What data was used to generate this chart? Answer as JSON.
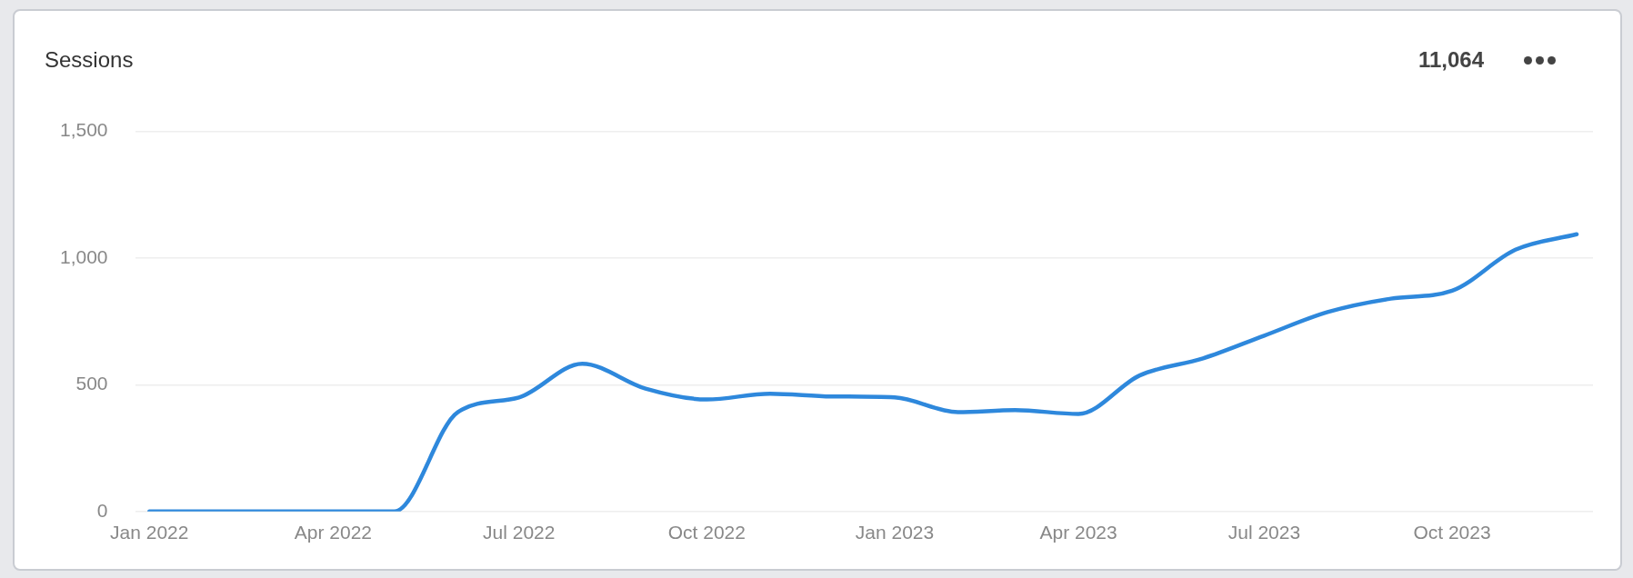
{
  "chart_data": {
    "type": "line",
    "title": "Sessions",
    "annotations": [
      "11,064"
    ],
    "x": [
      "2022-01",
      "2022-02",
      "2022-03",
      "2022-04",
      "2022-05",
      "2022-06",
      "2022-07",
      "2022-08",
      "2022-09",
      "2022-10",
      "2022-11",
      "2022-12",
      "2023-01",
      "2023-02",
      "2023-03",
      "2023-04",
      "2023-05",
      "2023-06",
      "2023-07",
      "2023-08",
      "2023-09",
      "2023-10",
      "2023-11",
      "2023-12"
    ],
    "values": [
      0,
      0,
      0,
      0,
      0,
      392,
      450,
      583,
      485,
      442,
      465,
      454,
      450,
      392,
      400,
      385,
      537,
      604,
      694,
      787,
      840,
      871,
      1033,
      1094
    ],
    "color": "#2e88dc",
    "line_style": "solid",
    "grid": "y",
    "xlim": [
      "2021-12-25",
      "2023-12-09"
    ],
    "xticks": [
      {
        "value": "2022-01",
        "label": "Jan 2022"
      },
      {
        "value": "2022-04",
        "label": "Apr 2022"
      },
      {
        "value": "2022-07",
        "label": "Jul 2022"
      },
      {
        "value": "2022-10",
        "label": "Oct 2022"
      },
      {
        "value": "2023-01",
        "label": "Jan 2023"
      },
      {
        "value": "2023-04",
        "label": "Apr 2023"
      },
      {
        "value": "2023-07",
        "label": "Jul 2023"
      },
      {
        "value": "2023-10",
        "label": "Oct 2023"
      }
    ],
    "ylim": [
      0,
      1500
    ],
    "yticks": [
      0,
      500,
      {
        "value": 1000,
        "label": "1,000"
      },
      {
        "value": 1500,
        "label": "1,500"
      }
    ]
  }
}
